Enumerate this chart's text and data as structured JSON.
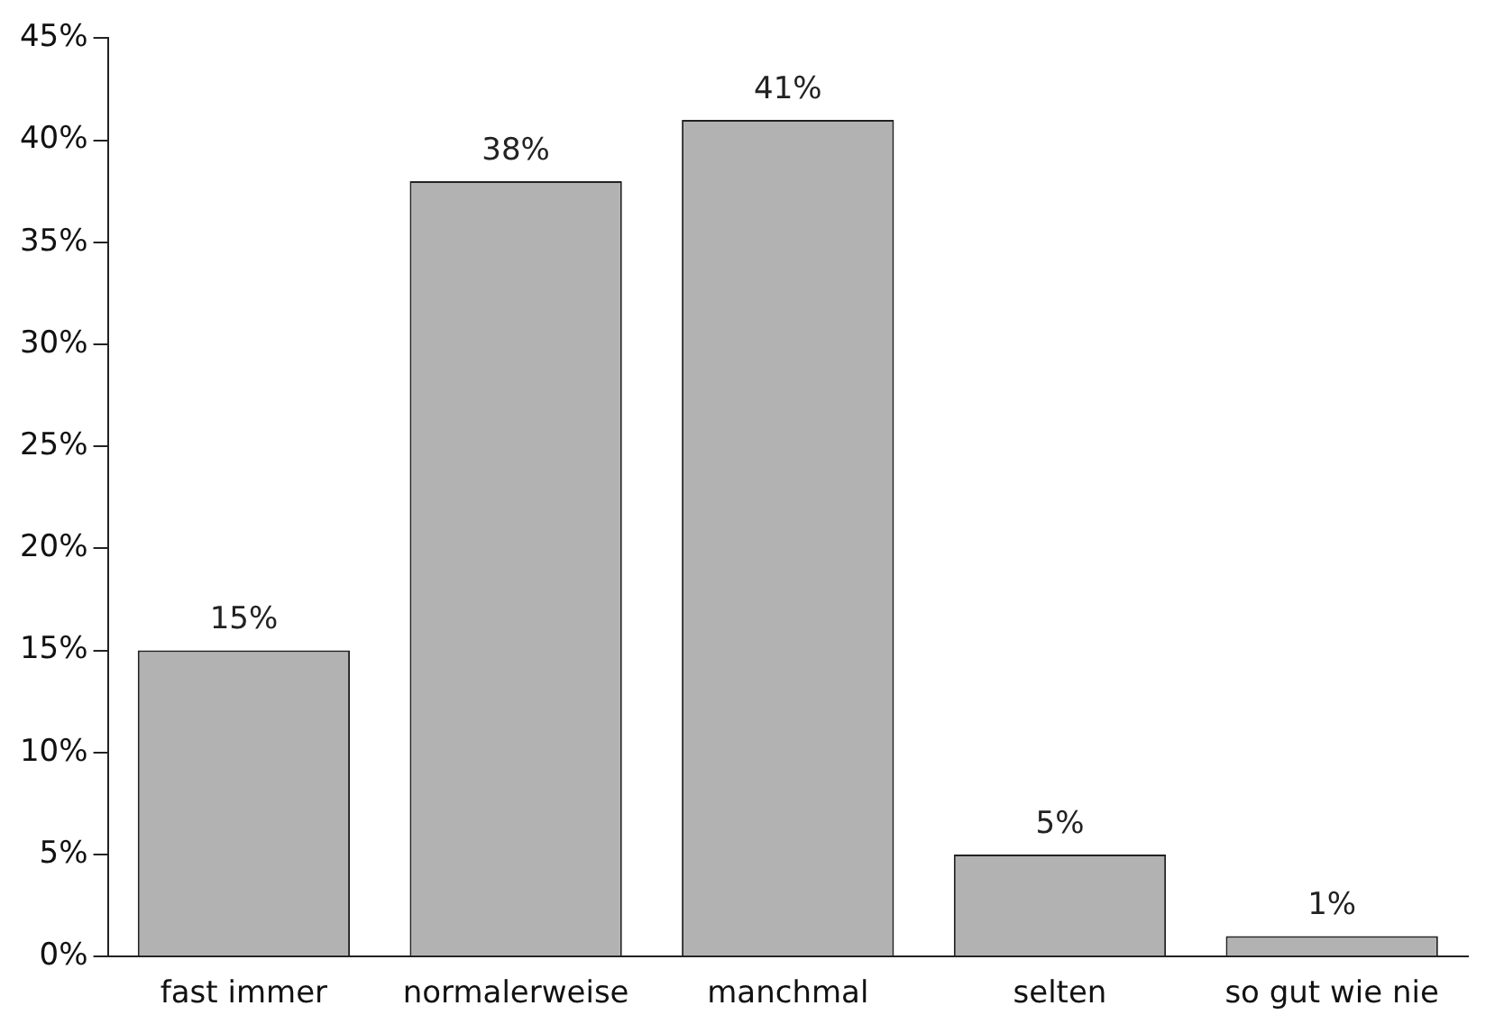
{
  "chart_data": {
    "type": "bar",
    "categories": [
      "fast immer",
      "normalerweise",
      "manchmal",
      "selten",
      "so gut wie nie"
    ],
    "values": [
      15,
      38,
      41,
      5,
      1
    ],
    "value_labels": [
      "15%",
      "38%",
      "41%",
      "5%",
      "1%"
    ],
    "color": "#b2b2b2",
    "ylim": [
      0,
      45
    ],
    "yticks": [
      {
        "value": 0,
        "label": "0%"
      },
      {
        "value": 5,
        "label": "5%"
      },
      {
        "value": 10,
        "label": "10%"
      },
      {
        "value": 15,
        "label": "15%"
      },
      {
        "value": 20,
        "label": "20%"
      },
      {
        "value": 25,
        "label": "25%"
      },
      {
        "value": 30,
        "label": "30%"
      },
      {
        "value": 35,
        "label": "35%"
      },
      {
        "value": 40,
        "label": "40%"
      },
      {
        "value": 45,
        "label": "45%"
      }
    ],
    "grid": false,
    "legend": false
  }
}
